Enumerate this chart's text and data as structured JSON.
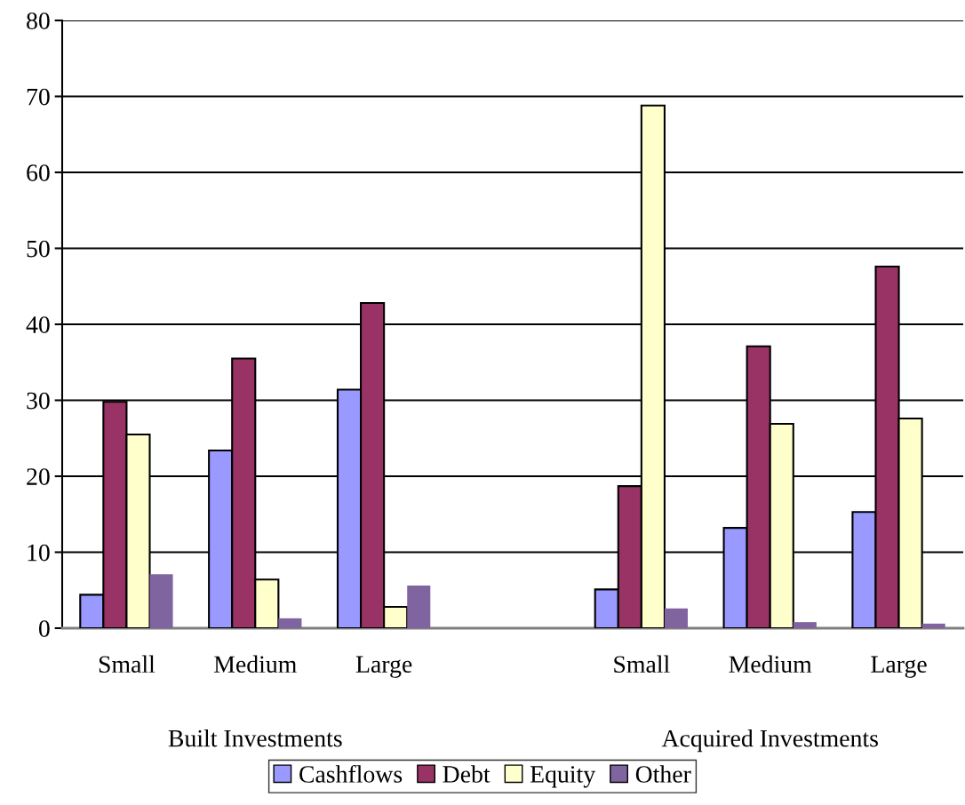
{
  "chart_data": {
    "type": "bar",
    "categories": [
      "Small",
      "Medium",
      "Large",
      null,
      "Small",
      "Medium",
      "Large"
    ],
    "series": [
      {
        "name": "Cashflows",
        "color": "#9999ff",
        "values": [
          4.4,
          23.4,
          31.4,
          null,
          5.1,
          13.2,
          15.3
        ]
      },
      {
        "name": "Debt",
        "color": "#993366",
        "values": [
          29.8,
          35.5,
          42.8,
          null,
          18.7,
          37.1,
          47.6
        ]
      },
      {
        "name": "Equity",
        "color": "#ffffcc",
        "values": [
          25.5,
          6.4,
          2.8,
          null,
          68.8,
          26.9,
          27.6
        ]
      },
      {
        "name": "Other",
        "color": "#8064a0",
        "values": [
          7.1,
          1.3,
          5.6,
          null,
          2.6,
          0.8,
          0.6
        ]
      }
    ],
    "annotations": [
      "Built Investments",
      "Acquired Investments"
    ],
    "ylim": [
      0,
      80
    ],
    "yticks": [
      0,
      10,
      20,
      30,
      40,
      50,
      60,
      70,
      80
    ],
    "grid": "y",
    "legend": "bottom"
  }
}
